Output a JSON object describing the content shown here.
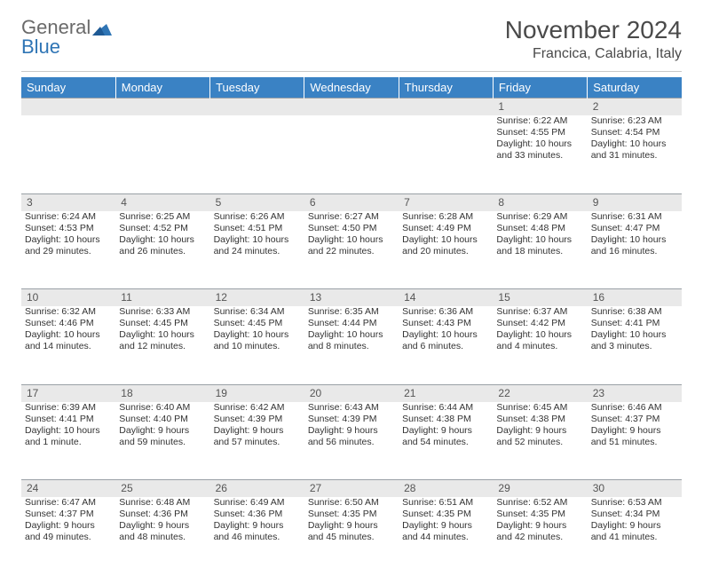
{
  "brand": {
    "part1": "General",
    "part2": "Blue"
  },
  "title": "November 2024",
  "location": "Francica, Calabria, Italy",
  "colors": {
    "header_bg": "#3a82c4",
    "header_text": "#ffffff",
    "daynum_bg": "#e9e9e9",
    "rule": "#9aa0a6",
    "brand_blue": "#2f75b5",
    "text": "#333333"
  },
  "weekdays": [
    "Sunday",
    "Monday",
    "Tuesday",
    "Wednesday",
    "Thursday",
    "Friday",
    "Saturday"
  ],
  "weeks": [
    [
      null,
      null,
      null,
      null,
      null,
      {
        "n": "1",
        "sr": "Sunrise: 6:22 AM",
        "ss": "Sunset: 4:55 PM",
        "dl1": "Daylight: 10 hours",
        "dl2": "and 33 minutes."
      },
      {
        "n": "2",
        "sr": "Sunrise: 6:23 AM",
        "ss": "Sunset: 4:54 PM",
        "dl1": "Daylight: 10 hours",
        "dl2": "and 31 minutes."
      }
    ],
    [
      {
        "n": "3",
        "sr": "Sunrise: 6:24 AM",
        "ss": "Sunset: 4:53 PM",
        "dl1": "Daylight: 10 hours",
        "dl2": "and 29 minutes."
      },
      {
        "n": "4",
        "sr": "Sunrise: 6:25 AM",
        "ss": "Sunset: 4:52 PM",
        "dl1": "Daylight: 10 hours",
        "dl2": "and 26 minutes."
      },
      {
        "n": "5",
        "sr": "Sunrise: 6:26 AM",
        "ss": "Sunset: 4:51 PM",
        "dl1": "Daylight: 10 hours",
        "dl2": "and 24 minutes."
      },
      {
        "n": "6",
        "sr": "Sunrise: 6:27 AM",
        "ss": "Sunset: 4:50 PM",
        "dl1": "Daylight: 10 hours",
        "dl2": "and 22 minutes."
      },
      {
        "n": "7",
        "sr": "Sunrise: 6:28 AM",
        "ss": "Sunset: 4:49 PM",
        "dl1": "Daylight: 10 hours",
        "dl2": "and 20 minutes."
      },
      {
        "n": "8",
        "sr": "Sunrise: 6:29 AM",
        "ss": "Sunset: 4:48 PM",
        "dl1": "Daylight: 10 hours",
        "dl2": "and 18 minutes."
      },
      {
        "n": "9",
        "sr": "Sunrise: 6:31 AM",
        "ss": "Sunset: 4:47 PM",
        "dl1": "Daylight: 10 hours",
        "dl2": "and 16 minutes."
      }
    ],
    [
      {
        "n": "10",
        "sr": "Sunrise: 6:32 AM",
        "ss": "Sunset: 4:46 PM",
        "dl1": "Daylight: 10 hours",
        "dl2": "and 14 minutes."
      },
      {
        "n": "11",
        "sr": "Sunrise: 6:33 AM",
        "ss": "Sunset: 4:45 PM",
        "dl1": "Daylight: 10 hours",
        "dl2": "and 12 minutes."
      },
      {
        "n": "12",
        "sr": "Sunrise: 6:34 AM",
        "ss": "Sunset: 4:45 PM",
        "dl1": "Daylight: 10 hours",
        "dl2": "and 10 minutes."
      },
      {
        "n": "13",
        "sr": "Sunrise: 6:35 AM",
        "ss": "Sunset: 4:44 PM",
        "dl1": "Daylight: 10 hours",
        "dl2": "and 8 minutes."
      },
      {
        "n": "14",
        "sr": "Sunrise: 6:36 AM",
        "ss": "Sunset: 4:43 PM",
        "dl1": "Daylight: 10 hours",
        "dl2": "and 6 minutes."
      },
      {
        "n": "15",
        "sr": "Sunrise: 6:37 AM",
        "ss": "Sunset: 4:42 PM",
        "dl1": "Daylight: 10 hours",
        "dl2": "and 4 minutes."
      },
      {
        "n": "16",
        "sr": "Sunrise: 6:38 AM",
        "ss": "Sunset: 4:41 PM",
        "dl1": "Daylight: 10 hours",
        "dl2": "and 3 minutes."
      }
    ],
    [
      {
        "n": "17",
        "sr": "Sunrise: 6:39 AM",
        "ss": "Sunset: 4:41 PM",
        "dl1": "Daylight: 10 hours",
        "dl2": "and 1 minute."
      },
      {
        "n": "18",
        "sr": "Sunrise: 6:40 AM",
        "ss": "Sunset: 4:40 PM",
        "dl1": "Daylight: 9 hours",
        "dl2": "and 59 minutes."
      },
      {
        "n": "19",
        "sr": "Sunrise: 6:42 AM",
        "ss": "Sunset: 4:39 PM",
        "dl1": "Daylight: 9 hours",
        "dl2": "and 57 minutes."
      },
      {
        "n": "20",
        "sr": "Sunrise: 6:43 AM",
        "ss": "Sunset: 4:39 PM",
        "dl1": "Daylight: 9 hours",
        "dl2": "and 56 minutes."
      },
      {
        "n": "21",
        "sr": "Sunrise: 6:44 AM",
        "ss": "Sunset: 4:38 PM",
        "dl1": "Daylight: 9 hours",
        "dl2": "and 54 minutes."
      },
      {
        "n": "22",
        "sr": "Sunrise: 6:45 AM",
        "ss": "Sunset: 4:38 PM",
        "dl1": "Daylight: 9 hours",
        "dl2": "and 52 minutes."
      },
      {
        "n": "23",
        "sr": "Sunrise: 6:46 AM",
        "ss": "Sunset: 4:37 PM",
        "dl1": "Daylight: 9 hours",
        "dl2": "and 51 minutes."
      }
    ],
    [
      {
        "n": "24",
        "sr": "Sunrise: 6:47 AM",
        "ss": "Sunset: 4:37 PM",
        "dl1": "Daylight: 9 hours",
        "dl2": "and 49 minutes."
      },
      {
        "n": "25",
        "sr": "Sunrise: 6:48 AM",
        "ss": "Sunset: 4:36 PM",
        "dl1": "Daylight: 9 hours",
        "dl2": "and 48 minutes."
      },
      {
        "n": "26",
        "sr": "Sunrise: 6:49 AM",
        "ss": "Sunset: 4:36 PM",
        "dl1": "Daylight: 9 hours",
        "dl2": "and 46 minutes."
      },
      {
        "n": "27",
        "sr": "Sunrise: 6:50 AM",
        "ss": "Sunset: 4:35 PM",
        "dl1": "Daylight: 9 hours",
        "dl2": "and 45 minutes."
      },
      {
        "n": "28",
        "sr": "Sunrise: 6:51 AM",
        "ss": "Sunset: 4:35 PM",
        "dl1": "Daylight: 9 hours",
        "dl2": "and 44 minutes."
      },
      {
        "n": "29",
        "sr": "Sunrise: 6:52 AM",
        "ss": "Sunset: 4:35 PM",
        "dl1": "Daylight: 9 hours",
        "dl2": "and 42 minutes."
      },
      {
        "n": "30",
        "sr": "Sunrise: 6:53 AM",
        "ss": "Sunset: 4:34 PM",
        "dl1": "Daylight: 9 hours",
        "dl2": "and 41 minutes."
      }
    ]
  ]
}
